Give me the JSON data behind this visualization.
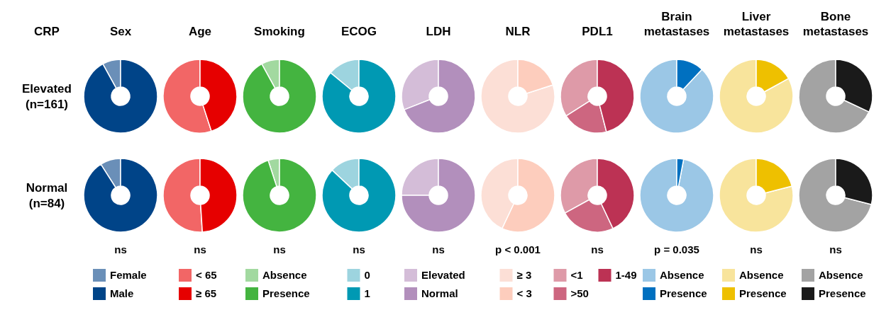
{
  "chart_data": [
    {
      "type": "other",
      "title": "CRP",
      "annotations": [
        "Elevated (n=161)",
        "Normal (n=84)"
      ]
    },
    {
      "type": "donut",
      "title": "Sex",
      "categories": [
        "Female",
        "Male"
      ],
      "values": [
        8,
        92
      ],
      "colors": [
        "#6a8fb8",
        "#004488"
      ],
      "legend": "bottom"
    },
    {
      "type": "donut",
      "title": "Age",
      "categories": [
        "< 65",
        "≥ 65"
      ],
      "values": [
        55,
        45
      ],
      "colors": [
        "#f26666",
        "#e60000"
      ],
      "legend": "bottom"
    },
    {
      "type": "donut",
      "title": "Smoking",
      "categories": [
        "Absence",
        "Presence"
      ],
      "values": [
        8,
        92
      ],
      "colors": [
        "#a2d9a0",
        "#44b440"
      ],
      "legend": "bottom"
    },
    {
      "type": "donut",
      "title": "ECOG",
      "categories": [
        "0",
        "1"
      ],
      "values": [
        14,
        86
      ],
      "colors": [
        "#9dd4df",
        "#0099b3"
      ],
      "legend": "bottom"
    },
    {
      "type": "donut",
      "title": "LDH",
      "categories": [
        "Elevated",
        "Normal"
      ],
      "values": [
        31,
        69
      ],
      "colors": [
        "#d4bdd8",
        "#b28fbc"
      ],
      "legend": "bottom"
    },
    {
      "type": "donut",
      "title": "NLR",
      "categories": [
        "≥ 3",
        "< 3"
      ],
      "values": [
        80,
        20
      ],
      "colors": [
        "#fcdfd6",
        "#fdcdbd"
      ],
      "legend": "bottom"
    },
    {
      "type": "donut",
      "title": "PDL1",
      "categories": [
        "<1",
        ">50",
        "1-49"
      ],
      "values": [
        34,
        20,
        46
      ],
      "colors": [
        "#de9aa8",
        "#cd6680",
        "#bc3254"
      ],
      "legend": "bottom"
    },
    {
      "type": "donut",
      "title": "Brain metastases",
      "categories": [
        "Absence",
        "Presence"
      ],
      "values": [
        88,
        12
      ],
      "colors": [
        "#9bc7e6",
        "#0070c0"
      ],
      "legend": "bottom"
    },
    {
      "type": "donut",
      "title": "Liver metastases",
      "categories": [
        "Absence",
        "Presence"
      ],
      "values": [
        83,
        17
      ],
      "colors": [
        "#f8e49c",
        "#eec000"
      ],
      "legend": "bottom"
    },
    {
      "type": "donut",
      "title": "Bone metastases",
      "categories": [
        "Absence",
        "Presence"
      ],
      "values": [
        68,
        32
      ],
      "colors": [
        "#a3a3a3",
        "#1a1a1a"
      ],
      "legend": "bottom"
    },
    {
      "type": "donut",
      "values": [
        9,
        91
      ],
      "colors": [
        "#6a8fb8",
        "#004488"
      ],
      "annotations": [
        "ns"
      ]
    },
    {
      "type": "donut",
      "values": [
        51,
        49
      ],
      "colors": [
        "#f26666",
        "#e60000"
      ],
      "annotations": [
        "ns"
      ]
    },
    {
      "type": "donut",
      "values": [
        5,
        95
      ],
      "colors": [
        "#a2d9a0",
        "#44b440"
      ],
      "annotations": [
        "ns"
      ]
    },
    {
      "type": "donut",
      "values": [
        13,
        87
      ],
      "colors": [
        "#9dd4df",
        "#0099b3"
      ],
      "annotations": [
        "ns"
      ]
    },
    {
      "type": "donut",
      "values": [
        25,
        75
      ],
      "colors": [
        "#d4bdd8",
        "#b28fbc"
      ],
      "annotations": [
        "ns"
      ]
    },
    {
      "type": "donut",
      "values": [
        43,
        57
      ],
      "colors": [
        "#fcdfd6",
        "#fdcdbd"
      ],
      "annotations": [
        "p < 0.001"
      ]
    },
    {
      "type": "donut",
      "values": [
        33,
        24,
        43
      ],
      "colors": [
        "#de9aa8",
        "#cd6680",
        "#bc3254"
      ],
      "annotations": [
        "ns"
      ]
    },
    {
      "type": "donut",
      "values": [
        97,
        3
      ],
      "colors": [
        "#9bc7e6",
        "#0070c0"
      ],
      "annotations": [
        "p = 0.035"
      ]
    },
    {
      "type": "donut",
      "values": [
        79,
        21
      ],
      "colors": [
        "#f8e49c",
        "#eec000"
      ],
      "annotations": [
        "ns"
      ]
    },
    {
      "type": "donut",
      "values": [
        71,
        29
      ],
      "colors": [
        "#a3a3a3",
        "#1a1a1a"
      ],
      "annotations": [
        "ns"
      ]
    }
  ]
}
